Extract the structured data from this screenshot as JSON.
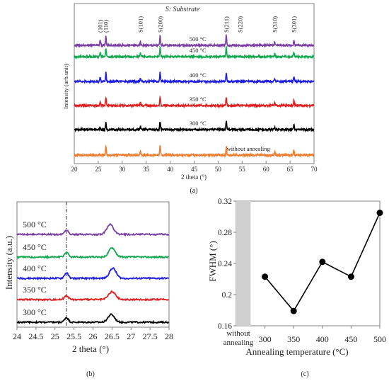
{
  "colors": {
    "without annealing": "#ED7D31",
    "300 °C": "#000000",
    "350 °C": "#E32020",
    "400 °C": "#1F1FE6",
    "450 °C": "#14A851",
    "500 °C": "#7A3FA5",
    "axis": "#7f7f7f",
    "marker": "#000000",
    "shaded_band": "#d0d0d0"
  },
  "panels": {
    "a": {
      "caption": "(a)"
    },
    "b": {
      "caption": "(b)"
    },
    "c": {
      "caption": "(c)"
    }
  },
  "chart_data": [
    {
      "id": "a",
      "type": "line",
      "title": "",
      "legend_note": "S: Substrate",
      "xlabel": "2 theta (°)",
      "ylabel": "Intensity (arb.unit)",
      "xlim": [
        20,
        70
      ],
      "xticks": [
        20,
        25,
        30,
        35,
        40,
        45,
        50,
        55,
        60,
        65,
        70
      ],
      "xtick_labels": [
        "20",
        "25",
        "30",
        "35",
        "40",
        "45",
        "50",
        "55",
        "60",
        "65",
        "70"
      ],
      "yticks_shown": false,
      "grid": false,
      "peak_labels": [
        {
          "text": "(101)",
          "x": 25.4
        },
        {
          "text": "(110)",
          "x": 26.6
        },
        {
          "text": "S(101)",
          "x": 33.8
        },
        {
          "text": "S(200)",
          "x": 37.9
        },
        {
          "text": "S(211)",
          "x": 51.7
        },
        {
          "text": "S(220)",
          "x": 54.6
        },
        {
          "text": "S(310)",
          "x": 61.8
        },
        {
          "text": "S(301)",
          "x": 65.8
        }
      ],
      "series": [
        {
          "name": "without annealing",
          "label": "without annealing",
          "label_x": 51.8,
          "offset": 0,
          "peaks": [
            [
              26.6,
              2.2
            ],
            [
              33.8,
              0.8
            ],
            [
              37.9,
              2.4
            ],
            [
              51.7,
              2.1
            ],
            [
              61.8,
              0.7
            ],
            [
              65.8,
              1.2
            ]
          ]
        },
        {
          "name": "300 °C",
          "label": "300 °C",
          "label_x": 44.0,
          "offset": 1,
          "peaks": [
            [
              25.4,
              0.6
            ],
            [
              26.6,
              1.9
            ],
            [
              33.8,
              0.7
            ],
            [
              37.9,
              2.1
            ],
            [
              51.7,
              2.2
            ],
            [
              61.8,
              0.6
            ],
            [
              65.8,
              1.2
            ]
          ]
        },
        {
          "name": "350 °C",
          "label": "350 °C",
          "label_x": 44.0,
          "offset": 2,
          "peaks": [
            [
              25.4,
              0.8
            ],
            [
              26.6,
              2.0
            ],
            [
              33.8,
              0.8
            ],
            [
              37.9,
              2.3
            ],
            [
              51.7,
              2.3
            ],
            [
              61.8,
              0.7
            ],
            [
              65.8,
              1.3
            ]
          ]
        },
        {
          "name": "400 °C",
          "label": "400 °C",
          "label_x": 44.0,
          "offset": 3,
          "peaks": [
            [
              25.4,
              1.1
            ],
            [
              26.6,
              2.3
            ],
            [
              33.8,
              0.8
            ],
            [
              37.9,
              2.3
            ],
            [
              51.7,
              2.4
            ],
            [
              61.8,
              0.7
            ],
            [
              65.8,
              1.3
            ]
          ]
        },
        {
          "name": "450 °C",
          "label": "450 °C",
          "label_x": 44.0,
          "offset": 4,
          "peaks": [
            [
              25.4,
              1.2
            ],
            [
              26.6,
              2.1
            ],
            [
              33.8,
              0.9
            ],
            [
              37.9,
              2.3
            ],
            [
              51.7,
              2.5
            ],
            [
              61.8,
              0.8
            ],
            [
              65.8,
              1.2
            ]
          ]
        },
        {
          "name": "500 °C",
          "label": "500 °C",
          "label_x": 44.0,
          "offset": 5,
          "peaks": [
            [
              25.4,
              1.3
            ],
            [
              26.6,
              2.2
            ],
            [
              33.8,
              0.9
            ],
            [
              37.9,
              2.4
            ],
            [
              51.7,
              2.6
            ],
            [
              61.8,
              0.8
            ],
            [
              65.8,
              1.2
            ]
          ]
        }
      ]
    },
    {
      "id": "b",
      "type": "line",
      "title": "",
      "xlabel": "2 theta (°)",
      "ylabel": "Intensity (a.u.)",
      "xlim": [
        24,
        28
      ],
      "xticks": [
        24,
        24.5,
        25,
        25.5,
        26,
        26.5,
        27,
        27.5,
        28
      ],
      "xtick_labels": [
        "24",
        "24.5",
        "25",
        "25.5",
        "26",
        "26.5",
        "27",
        "27.5",
        "28"
      ],
      "reference_line_x": 25.3,
      "grid": false,
      "series": [
        {
          "name": "300 °C",
          "label": "300 °C",
          "offset": 0,
          "peaks": [
            [
              25.3,
              0.6,
              0.07
            ],
            [
              26.48,
              1.0,
              0.12
            ]
          ]
        },
        {
          "name": "350 °C",
          "label": "350 °C",
          "offset": 1,
          "peaks": [
            [
              25.3,
              0.55,
              0.07
            ],
            [
              26.5,
              1.0,
              0.13
            ]
          ]
        },
        {
          "name": "400 °C",
          "label": "400 °C",
          "offset": 2,
          "peaks": [
            [
              25.3,
              0.7,
              0.07
            ],
            [
              26.52,
              1.3,
              0.12
            ]
          ]
        },
        {
          "name": "450 °C",
          "label": "450 °C",
          "offset": 3,
          "peaks": [
            [
              25.3,
              0.6,
              0.07
            ],
            [
              26.5,
              1.2,
              0.12
            ]
          ]
        },
        {
          "name": "500 °C",
          "label": "500 °C",
          "offset": 4,
          "peaks": [
            [
              25.3,
              0.55,
              0.07
            ],
            [
              26.45,
              1.3,
              0.12
            ]
          ]
        }
      ]
    },
    {
      "id": "c",
      "type": "line",
      "title": "",
      "xlabel": "Annealing temperature (°C)",
      "ylabel": "FWHM (°)",
      "xlim": [
        250,
        500
      ],
      "ylim": [
        0.16,
        0.32
      ],
      "xticks": [
        300,
        350,
        400,
        450,
        500
      ],
      "xtick_labels": [
        "300",
        "350",
        "400",
        "450",
        "500"
      ],
      "yticks": [
        0.16,
        0.2,
        0.24,
        0.28,
        0.32
      ],
      "ytick_labels": [
        "0.16",
        "0.2",
        "0.24",
        "0.28",
        "0.32"
      ],
      "extra_category_label": [
        "without",
        "annealing"
      ],
      "shaded_region_x": [
        250,
        275
      ],
      "grid": false,
      "x": [
        300,
        350,
        400,
        450,
        500
      ],
      "y": [
        0.223,
        0.179,
        0.242,
        0.223,
        0.305
      ]
    }
  ]
}
